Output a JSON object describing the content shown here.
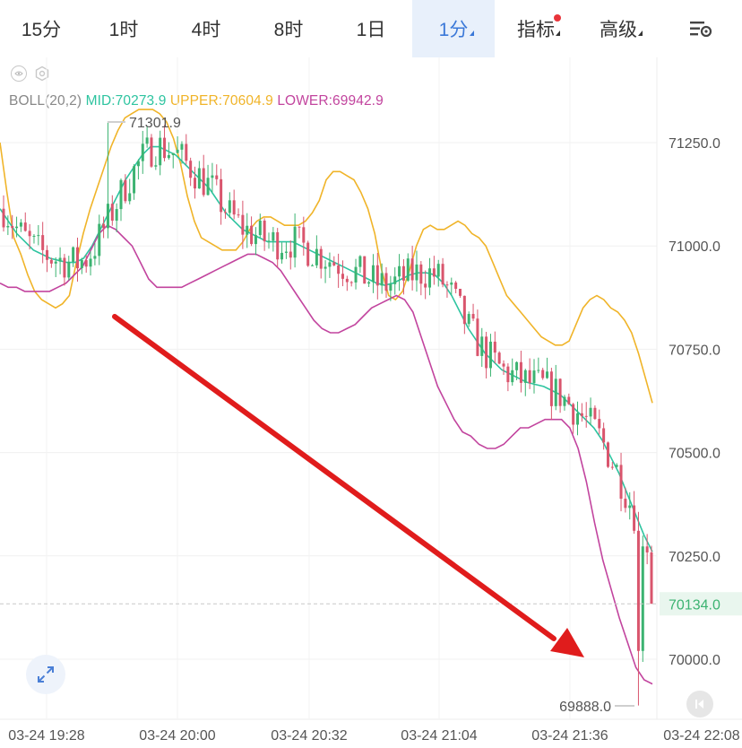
{
  "tabs": [
    {
      "label": "15分",
      "active": false
    },
    {
      "label": "1时",
      "active": false
    },
    {
      "label": "4时",
      "active": false
    },
    {
      "label": "8时",
      "active": false
    },
    {
      "label": "1日",
      "active": false
    },
    {
      "label": "1分",
      "active": true
    },
    {
      "label": "指标",
      "active": false
    },
    {
      "label": "高级",
      "active": false
    }
  ],
  "icons": [
    "settings-list-icon",
    "eye-icon",
    "gear-icon",
    "expand-icon",
    "jump-latest-icon"
  ],
  "legend": {
    "name": "BOLL(20,2)",
    "mid": "MID:70273.9",
    "upper": "UPPER:70604.9",
    "lower": "LOWER:69942.9"
  },
  "colors": {
    "up": "#3cb371",
    "down": "#d9556d",
    "mid": "#2ec4a0",
    "upper": "#f0b429",
    "lower": "#c2449e",
    "active_tab": "#3a78d8",
    "arrow": "#e01c1c"
  },
  "chart_data": {
    "type": "candlestick",
    "indicator": "BOLL(20,2)",
    "y_ticks": [
      "71250.0",
      "71000.0",
      "70750.0",
      "70500.0",
      "70250.0",
      "70000.0"
    ],
    "x_ticks": [
      "03-24 19:28",
      "03-24 20:00",
      "03-24 20:32",
      "03-24 21:04",
      "03-24 21:36",
      "03-24 22:08"
    ],
    "last_price": "70134.0",
    "high_label": "71301.9",
    "low_label": "69888.0",
    "ylim": [
      69870,
      71370
    ],
    "upper_band": [
      71250,
      71130,
      71020,
      70980,
      70930,
      70890,
      70870,
      70860,
      70850,
      70860,
      70880,
      70960,
      71030,
      71090,
      71140,
      71190,
      71240,
      71280,
      71310,
      71320,
      71330,
      71330,
      71330,
      71320,
      71300,
      71260,
      71200,
      71120,
      71060,
      71020,
      71010,
      71000,
      70990,
      70990,
      70990,
      71010,
      71040,
      71060,
      71070,
      71070,
      71060,
      71050,
      71050,
      71050,
      71060,
      71080,
      71110,
      71160,
      71180,
      71180,
      71170,
      71160,
      71130,
      71090,
      71030,
      70940,
      70880,
      70870,
      70890,
      70940,
      71000,
      71040,
      71050,
      71040,
      71040,
      71050,
      71060,
      71050,
      71030,
      71020,
      71000,
      70960,
      70920,
      70880,
      70860,
      70840,
      70820,
      70800,
      70780,
      70770,
      70760,
      70760,
      70770,
      70810,
      70850,
      70870,
      70880,
      70870,
      70850,
      70840,
      70820,
      70790,
      70740,
      70680,
      70620
    ],
    "mid_band": [
      71090,
      71060,
      71030,
      71010,
      70990,
      70980,
      70970,
      70965,
      70960,
      70960,
      70970,
      71000,
      71040,
      71080,
      71120,
      71160,
      71190,
      71220,
      71240,
      71240,
      71230,
      71220,
      71200,
      71180,
      71160,
      71140,
      71110,
      71080,
      71060,
      71040,
      71030,
      71020,
      71010,
      71010,
      71010,
      71010,
      71000,
      70990,
      70980,
      70970,
      70960,
      70950,
      70940,
      70930,
      70920,
      70910,
      70905,
      70910,
      70920,
      70930,
      70935,
      70935,
      70930,
      70910,
      70880,
      70840,
      70800,
      70770,
      70740,
      70720,
      70700,
      70690,
      70680,
      70670,
      70665,
      70660,
      70650,
      70640,
      70620,
      70600,
      70580,
      70560,
      70530,
      70490,
      70450,
      70400,
      70350,
      70300,
      70260
    ],
    "lower_band": [
      70910,
      70900,
      70900,
      70890,
      70890,
      70890,
      70890,
      70900,
      70910,
      70930,
      70950,
      70990,
      71030,
      71050,
      71040,
      71020,
      71000,
      70960,
      70920,
      70900,
      70900,
      70900,
      70900,
      70910,
      70920,
      70930,
      70940,
      70950,
      70960,
      70970,
      70980,
      70980,
      70970,
      70960,
      70940,
      70910,
      70880,
      70850,
      70820,
      70800,
      70790,
      70790,
      70800,
      70810,
      70830,
      70850,
      70860,
      70870,
      70880,
      70870,
      70840,
      70780,
      70720,
      70660,
      70620,
      70580,
      70550,
      70540,
      70520,
      70510,
      70510,
      70520,
      70540,
      70560,
      70560,
      70570,
      70580,
      70580,
      70580,
      70560,
      70510,
      70430,
      70330,
      70240,
      70170,
      70100,
      70040,
      69980,
      69950,
      69940
    ],
    "candles_note": "Candle OHLC values estimated visually from the price axis"
  }
}
